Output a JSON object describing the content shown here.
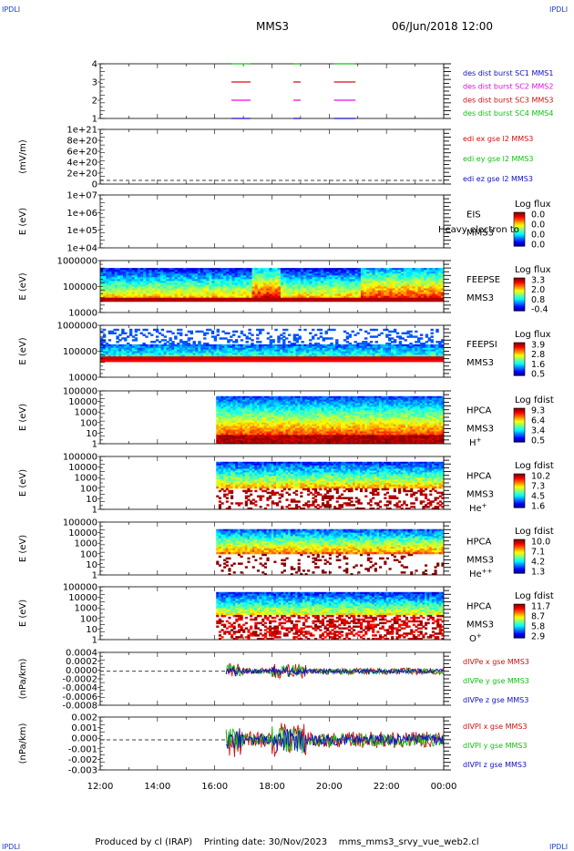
{
  "corners": {
    "tl": "IPDLI",
    "tr": "IPDLI",
    "bl": "IPDLI",
    "br": "IPDLI"
  },
  "header": {
    "title": "MMS3",
    "date": "06/Jun/2018 12:00"
  },
  "footer": {
    "produced": "Produced by cl (IRAP)",
    "printing": "Printing date: 30/Nov/2023",
    "file": "mms_mms3_srvy_vue_web2.cl"
  },
  "time_axis": {
    "ticks": [
      "12:00",
      "14:00",
      "16:00",
      "18:00",
      "20:00",
      "22:00",
      "00:00"
    ]
  },
  "colors": {
    "mms1": "#1010c0",
    "mms2": "#e010e0",
    "mms3": "#d01010",
    "mms4": "#10c010"
  },
  "chart_data": [
    {
      "id": "burst",
      "type": "line",
      "yticks": [
        "4",
        "3",
        "2",
        "1"
      ],
      "legend": [
        "des dist burst SC1 MMS1",
        "des dist burst SC2 MMS2",
        "des dist burst SC3 MMS3",
        "des dist burst SC4 MMS4"
      ],
      "series": [
        {
          "name": "des dist burst SC1 MMS1",
          "y": 1,
          "intervals": [
            [
              "16:35",
              "17:15"
            ],
            [
              "18:45",
              "19:00"
            ],
            [
              "20:10",
              "20:55"
            ]
          ]
        },
        {
          "name": "des dist burst SC2 MMS2",
          "y": 2,
          "intervals": [
            [
              "16:35",
              "17:15"
            ],
            [
              "18:45",
              "19:00"
            ],
            [
              "20:10",
              "20:55"
            ]
          ]
        },
        {
          "name": "des dist burst SC3 MMS3",
          "y": 3,
          "intervals": [
            [
              "16:35",
              "17:15"
            ],
            [
              "18:45",
              "19:00"
            ],
            [
              "20:10",
              "20:55"
            ]
          ]
        },
        {
          "name": "des dist burst SC4 MMS4",
          "y": 4,
          "intervals": [
            [
              "16:35",
              "17:15"
            ],
            [
              "18:45",
              "19:00"
            ],
            [
              "20:10",
              "20:55"
            ]
          ]
        }
      ]
    },
    {
      "id": "edi",
      "type": "line",
      "ylabel": "(mV/m)",
      "yticks": [
        "1e+21",
        "8e+20",
        "6e+20",
        "4e+20",
        "2e+20",
        "0"
      ],
      "legend": [
        "edi ex gse l2 MMS3",
        "edi ey gse l2 MMS3",
        "edi ez gse l2 MMS3"
      ],
      "zero_line": true
    },
    {
      "id": "eis",
      "type": "heatmap",
      "ylabel": "E (eV)",
      "yticks": [
        "1e+07",
        "1e+06",
        "1e+05",
        "1e+04"
      ],
      "side": [
        "EIS",
        "MMS3"
      ],
      "overlay": "Heavy electron to",
      "cbar": {
        "title": "Log flux",
        "ticks": [
          "0.0",
          "0.0",
          "0.0",
          "0.0"
        ]
      }
    },
    {
      "id": "feepse",
      "type": "heatmap",
      "ylabel": "E (eV)",
      "yticks": [
        "1000000",
        "100000",
        "10000"
      ],
      "side": [
        "FEEPSE",
        "MMS3"
      ],
      "cbar": {
        "title": "Log flux",
        "ticks": [
          "3.3",
          "2.0",
          "0.8",
          "-0.4"
        ]
      }
    },
    {
      "id": "feepsi",
      "type": "heatmap",
      "ylabel": "E (eV)",
      "yticks": [
        "1000000",
        "100000",
        "10000"
      ],
      "side": [
        "FEEPSI",
        "MMS3"
      ],
      "cbar": {
        "title": "Log flux",
        "ticks": [
          "3.9",
          "2.8",
          "1.6",
          "0.5"
        ]
      }
    },
    {
      "id": "hpca_h",
      "type": "heatmap",
      "ylabel": "E (eV)",
      "yticks": [
        "100000",
        "10000",
        "1000",
        "100",
        "10",
        "1"
      ],
      "side": [
        "HPCA",
        "MMS3"
      ],
      "species": "H",
      "species_sup": "+",
      "cbar": {
        "title": "Log fdist",
        "ticks": [
          "9.3",
          "6.4",
          "3.4",
          "0.5"
        ]
      }
    },
    {
      "id": "hpca_he",
      "type": "heatmap",
      "ylabel": "E (eV)",
      "yticks": [
        "100000",
        "10000",
        "1000",
        "100",
        "10",
        "1"
      ],
      "side": [
        "HPCA",
        "MMS3"
      ],
      "species": "He",
      "species_sup": "+",
      "cbar": {
        "title": "Log fdist",
        "ticks": [
          "10.2",
          "7.3",
          "4.5",
          "1.6"
        ]
      }
    },
    {
      "id": "hpca_he2",
      "type": "heatmap",
      "ylabel": "E (eV)",
      "yticks": [
        "100000",
        "10000",
        "1000",
        "100",
        "10",
        "1"
      ],
      "side": [
        "HPCA",
        "MMS3"
      ],
      "species": "He",
      "species_sup": "++",
      "cbar": {
        "title": "Log fdist",
        "ticks": [
          "10.0",
          "7.1",
          "4.2",
          "1.3"
        ]
      }
    },
    {
      "id": "hpca_o",
      "type": "heatmap",
      "ylabel": "E (eV)",
      "yticks": [
        "100000",
        "10000",
        "1000",
        "100",
        "10",
        "1"
      ],
      "side": [
        "HPCA",
        "MMS3"
      ],
      "species": "O",
      "species_sup": "+",
      "cbar": {
        "title": "Log fdist",
        "ticks": [
          "11.7",
          "8.7",
          "5.8",
          "2.9"
        ]
      }
    },
    {
      "id": "divpe",
      "type": "line",
      "ylabel": "(nPa/km)",
      "yticks": [
        "0.0004",
        "0.0002",
        "0.0000",
        "-0.0002",
        "-0.0004",
        "-0.0006",
        "-0.0008"
      ],
      "legend": [
        "dIVPe x gse MMS3",
        "dIVPe y gse MMS3",
        "dIVPe z gse MMS3"
      ],
      "ylim": [
        -0.0009,
        0.0005
      ],
      "zero_line": true
    },
    {
      "id": "divpi",
      "type": "line",
      "ylabel": "(nPa/km)",
      "yticks": [
        "0.002",
        "0.001",
        "0.000",
        "-0.001",
        "-0.002",
        "-0.003"
      ],
      "legend": [
        "dIVPI x gse MMS3",
        "dIVPI y gse MMS3",
        "dIVPI z gse MMS3"
      ],
      "ylim": [
        -0.0033,
        0.0025
      ],
      "zero_line": true
    }
  ]
}
